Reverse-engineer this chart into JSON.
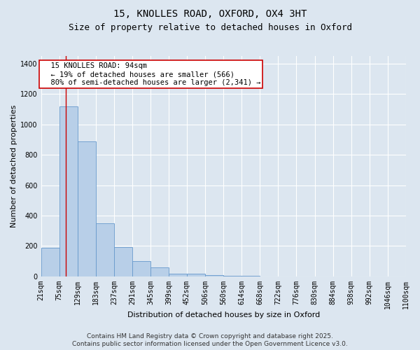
{
  "title_line1": "15, KNOLLES ROAD, OXFORD, OX4 3HT",
  "title_line2": "Size of property relative to detached houses in Oxford",
  "xlabel": "Distribution of detached houses by size in Oxford",
  "ylabel": "Number of detached properties",
  "bar_color": "#b8cfe8",
  "bar_edge_color": "#6699cc",
  "background_color": "#dce6f0",
  "plot_bg_color": "#dce6f0",
  "fig_bg_color": "#dce6f0",
  "grid_color": "#ffffff",
  "bins": [
    21,
    75,
    129,
    183,
    237,
    291,
    345,
    399,
    452,
    506,
    560,
    614,
    668,
    722,
    776,
    830,
    884,
    938,
    992,
    1046,
    1100
  ],
  "values": [
    190,
    1120,
    890,
    350,
    195,
    100,
    60,
    20,
    20,
    10,
    5,
    2,
    0,
    0,
    0,
    0,
    0,
    0,
    0,
    0
  ],
  "bin_labels": [
    "21sqm",
    "75sqm",
    "129sqm",
    "183sqm",
    "237sqm",
    "291sqm",
    "345sqm",
    "399sqm",
    "452sqm",
    "506sqm",
    "560sqm",
    "614sqm",
    "668sqm",
    "722sqm",
    "776sqm",
    "830sqm",
    "884sqm",
    "938sqm",
    "992sqm",
    "1046sqm",
    "1100sqm"
  ],
  "red_line_x": 94,
  "ylim": [
    0,
    1450
  ],
  "annotation_text": "  15 KNOLLES ROAD: 94sqm\n  ← 19% of detached houses are smaller (566)\n  80% of semi-detached houses are larger (2,341) →",
  "annotation_box_color": "#ffffff",
  "annotation_box_edge": "#cc0000",
  "footer_line1": "Contains HM Land Registry data © Crown copyright and database right 2025.",
  "footer_line2": "Contains public sector information licensed under the Open Government Licence v3.0.",
  "title_fontsize": 10,
  "subtitle_fontsize": 9,
  "axis_label_fontsize": 8,
  "tick_fontsize": 7,
  "annotation_fontsize": 7.5,
  "footer_fontsize": 6.5
}
